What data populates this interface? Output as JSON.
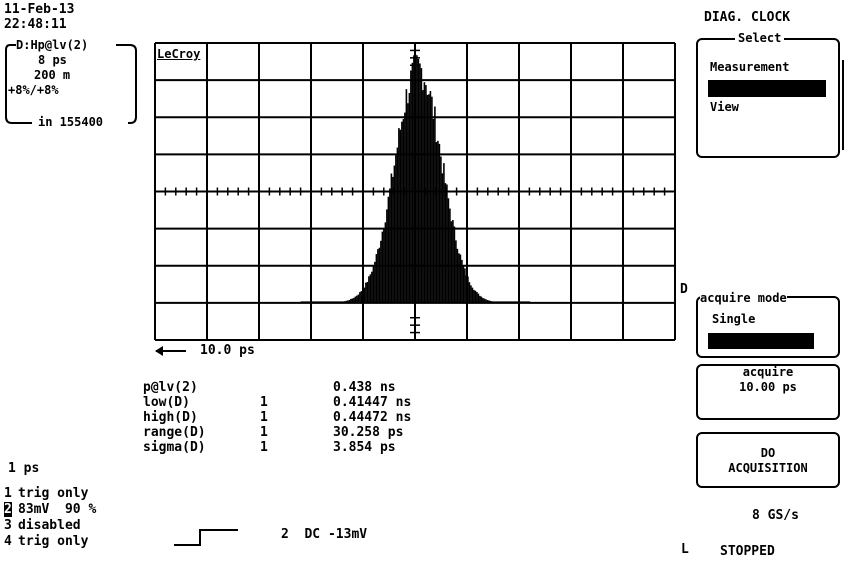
{
  "header": {
    "date": "11-Feb-13",
    "time": "22:48:11",
    "right_title": "DIAG. CLOCK"
  },
  "trace_box": {
    "label": "D:Hp@lv(2)",
    "line1": "8 ps",
    "line2": "200 m",
    "line3": "+8%/+8%",
    "line4": "in 155400"
  },
  "grid": {
    "logo": "LeCroy",
    "time_scale": "10.0 ps",
    "channel_marker": "D"
  },
  "histogram": {
    "center_fraction": 0.505,
    "peak_fraction": 0.79,
    "sigma_fraction": 0.045
  },
  "measurements": [
    {
      "name": "p@lv(2)",
      "flag": "",
      "value": "0.438 ns"
    },
    {
      "name": "low(D)",
      "flag": "1",
      "value": "0.41447 ns"
    },
    {
      "name": "high(D)",
      "flag": "1",
      "value": "0.44472 ns"
    },
    {
      "name": "range(D)",
      "flag": "1",
      "value": "30.258 ps"
    },
    {
      "name": "sigma(D)",
      "flag": "1",
      "value": "3.854 ps"
    }
  ],
  "left_bottom": {
    "timebase": "1 ps",
    "channels": [
      {
        "num": "1",
        "text": "trig only"
      },
      {
        "num": "2",
        "text": "83mV  90 %"
      },
      {
        "num": "3",
        "text": "disabled"
      },
      {
        "num": "4",
        "text": "trig only"
      }
    ]
  },
  "trigger": {
    "text": "2  DC -13mV"
  },
  "menu": {
    "select_title": "Select",
    "items": [
      "Measurement",
      "",
      "View"
    ],
    "acquire_mode_title": "acquire mode",
    "acquire_mode_value": "Single",
    "acquire_title": "acquire",
    "acquire_value": "10.00 ps",
    "do_acq_line1": "DO",
    "do_acq_line2": "ACQUISITION",
    "sample_rate": "8 GS/s",
    "status": "STOPPED",
    "status_indicator": "L"
  }
}
